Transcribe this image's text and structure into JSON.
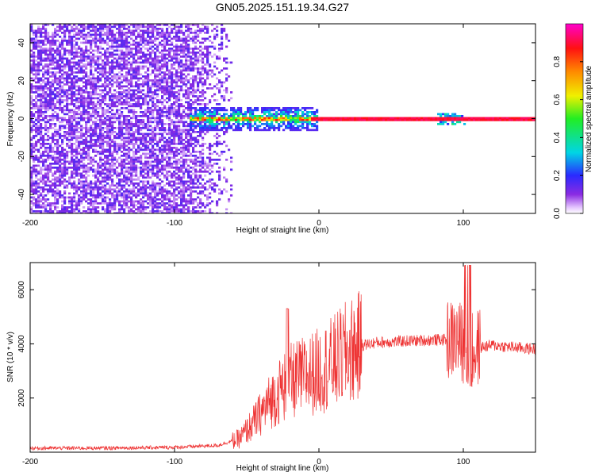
{
  "figure_title": "GN05.2025.151.19.34.G27",
  "chart_data": [
    {
      "type": "heatmap",
      "title": "GN05.2025.151.19.34.G27",
      "xlabel": "Height of straight line (km)",
      "ylabel": "Frequency (Hz)",
      "xlim": [
        -200,
        150
      ],
      "ylim": [
        -50,
        50
      ],
      "x_ticks": [
        "-200",
        "-100",
        "0",
        "100"
      ],
      "y_ticks": [
        "-40",
        "-20",
        "0",
        "20",
        "40"
      ],
      "x_tick_values": [
        -200,
        -100,
        0,
        100
      ],
      "y_tick_values": [
        -40,
        -20,
        0,
        20,
        40
      ],
      "colorbar": {
        "label": "Normalized spectral amplitude",
        "range": [
          0,
          1
        ],
        "ticks": [
          "0.0",
          "0.2",
          "0.4",
          "0.6",
          "0.8"
        ],
        "tick_values": [
          0,
          0.2,
          0.4,
          0.6,
          0.8
        ],
        "colormap": "rainbow (purple-blue-cyan-green-yellow-red-magenta)"
      },
      "features": {
        "noise_region_x": [
          -200,
          -60
        ],
        "strong_line_frequency_hz": 0,
        "strong_line_x": [
          -90,
          150
        ],
        "strong_line_amplitude": 0.9,
        "blob_near_x": 92
      },
      "grid": false
    },
    {
      "type": "line",
      "xlabel": "Height of straight line (km)",
      "ylabel": "SNR (10 * v/v)",
      "xlim": [
        -200,
        150
      ],
      "ylim": [
        0,
        7000
      ],
      "x_ticks": [
        "-200",
        "-100",
        "0",
        "100"
      ],
      "y_ticks": [
        "2000",
        "4000",
        "6000"
      ],
      "x_tick_values": [
        -200,
        -100,
        0,
        100
      ],
      "y_tick_values": [
        2000,
        4000,
        6000
      ],
      "color": "#ee3333",
      "x": [
        -200,
        -150,
        -100,
        -70,
        -55,
        -45,
        -35,
        -25,
        -20,
        -10,
        0,
        10,
        20,
        30,
        40,
        60,
        80,
        90,
        95,
        100,
        105,
        110,
        120,
        130,
        150
      ],
      "y": [
        150,
        150,
        180,
        250,
        500,
        1100,
        1800,
        2400,
        2600,
        2800,
        3000,
        3300,
        3700,
        3950,
        4050,
        4100,
        4150,
        4150,
        4200,
        4000,
        3600,
        3850,
        3950,
        3900,
        3800
      ],
      "grid": false
    }
  ]
}
